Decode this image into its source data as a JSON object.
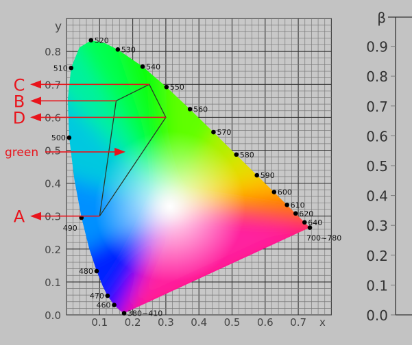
{
  "chart_data": {
    "type": "scatter",
    "xlabel": "x",
    "ylabel": "y",
    "xlim": [
      0,
      0.8
    ],
    "ylim": [
      0,
      0.9
    ],
    "grid": true,
    "x_ticks": [
      "0.1",
      "0.2",
      "0.3",
      "0.4",
      "0.5",
      "0.6",
      "0.7"
    ],
    "y_ticks": [
      "0.0",
      "0.1",
      "0.2",
      "0.3",
      "0.4",
      "0.5",
      "0.6",
      "0.7",
      "0.8"
    ],
    "wavelength_points": [
      {
        "label": "380~410",
        "x": 0.174,
        "y": 0.005,
        "pos": "right"
      },
      {
        "label": "460",
        "x": 0.144,
        "y": 0.03,
        "pos": "left"
      },
      {
        "label": "470",
        "x": 0.124,
        "y": 0.058,
        "pos": "left"
      },
      {
        "label": "480",
        "x": 0.091,
        "y": 0.133,
        "pos": "left"
      },
      {
        "label": "490",
        "x": 0.045,
        "y": 0.295,
        "pos": "below-left"
      },
      {
        "label": "500",
        "x": 0.008,
        "y": 0.538,
        "pos": "left"
      },
      {
        "label": "510",
        "x": 0.014,
        "y": 0.75,
        "pos": "left"
      },
      {
        "label": "520",
        "x": 0.074,
        "y": 0.834,
        "pos": "right"
      },
      {
        "label": "530",
        "x": 0.155,
        "y": 0.806,
        "pos": "right"
      },
      {
        "label": "540",
        "x": 0.23,
        "y": 0.754,
        "pos": "right"
      },
      {
        "label": "550",
        "x": 0.302,
        "y": 0.692,
        "pos": "right"
      },
      {
        "label": "560",
        "x": 0.373,
        "y": 0.625,
        "pos": "right"
      },
      {
        "label": "570",
        "x": 0.444,
        "y": 0.555,
        "pos": "right"
      },
      {
        "label": "580",
        "x": 0.513,
        "y": 0.487,
        "pos": "right"
      },
      {
        "label": "590",
        "x": 0.575,
        "y": 0.424,
        "pos": "right"
      },
      {
        "label": "600",
        "x": 0.627,
        "y": 0.373,
        "pos": "right"
      },
      {
        "label": "610",
        "x": 0.666,
        "y": 0.334,
        "pos": "right"
      },
      {
        "label": "620",
        "x": 0.692,
        "y": 0.308,
        "pos": "right"
      },
      {
        "label": "640",
        "x": 0.719,
        "y": 0.281,
        "pos": "right"
      },
      {
        "label": "700~780",
        "x": 0.735,
        "y": 0.265,
        "pos": "below"
      }
    ],
    "polygon": [
      {
        "label": "A",
        "x": 0.1,
        "y": 0.3
      },
      {
        "label": "B",
        "x": 0.15,
        "y": 0.65
      },
      {
        "label": "C",
        "x": 0.25,
        "y": 0.7
      },
      {
        "label": "D",
        "x": 0.3,
        "y": 0.6
      }
    ],
    "green_annotation": {
      "label": "green",
      "x": 0.17,
      "y": 0.495
    }
  },
  "beta_axis": {
    "label": "β",
    "ticks": [
      "0.0",
      "0.1",
      "0.2",
      "0.3",
      "0.4",
      "0.5",
      "0.6",
      "0.7",
      "0.8",
      "0.9"
    ]
  }
}
